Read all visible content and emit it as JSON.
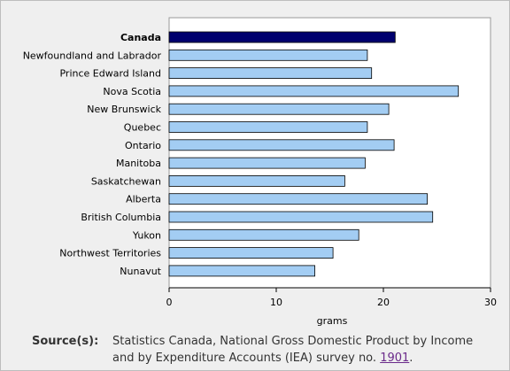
{
  "chart_data": {
    "type": "bar",
    "orientation": "horizontal",
    "categories": [
      "Canada",
      "Newfoundland and Labrador",
      "Prince Edward Island",
      "Nova Scotia",
      "New Brunswick",
      "Quebec",
      "Ontario",
      "Manitoba",
      "Saskatchewan",
      "Alberta",
      "British Columbia",
      "Yukon",
      "Northwest Territories",
      "Nunavut"
    ],
    "values": [
      21.1,
      18.5,
      18.9,
      27.0,
      20.5,
      18.5,
      21.0,
      18.3,
      16.4,
      24.1,
      24.6,
      17.7,
      15.3,
      13.6
    ],
    "highlight_category": "Canada",
    "xlabel": "grams",
    "xlim": [
      0,
      30
    ],
    "xticks": [
      0,
      10,
      20,
      30
    ],
    "colors": {
      "highlight_bar": "#00006e",
      "bar": "#a3cdf3",
      "bar_stroke": "#000000"
    },
    "grid": false,
    "legend": "none"
  },
  "source": {
    "label": "Source(s):",
    "text": "Statistics Canada, National Gross Domestic Product by Income and by Expenditure Accounts (IEA) survey no.",
    "link": "1901",
    "suffix": "."
  }
}
